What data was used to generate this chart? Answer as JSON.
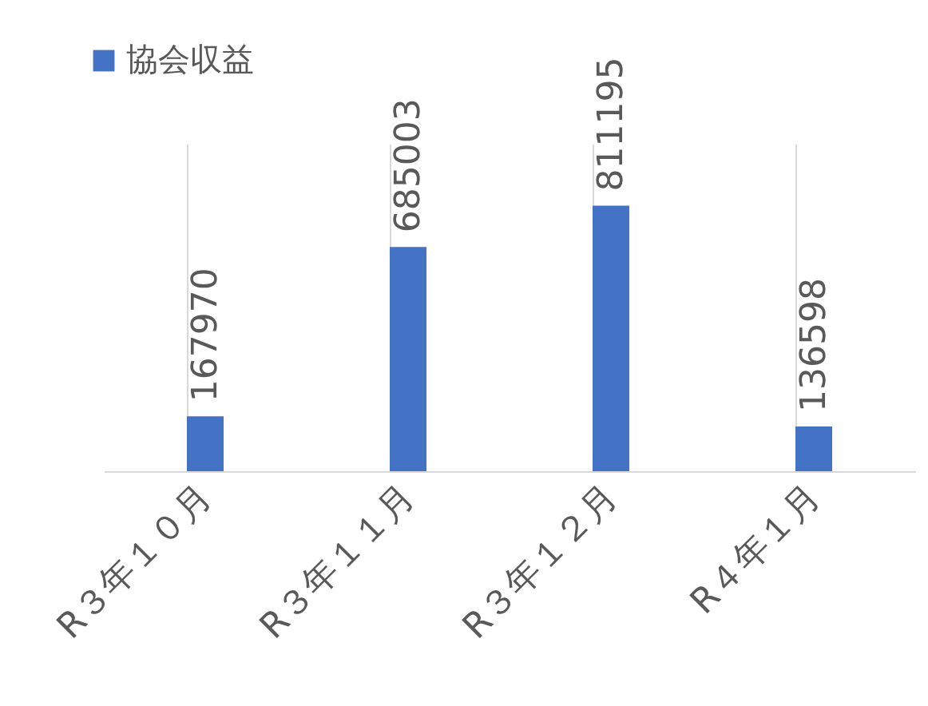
{
  "chart_data": {
    "type": "bar",
    "categories": [
      "R３年１０月",
      "R３年１１月",
      "R３年１２月",
      "R４年１月"
    ],
    "series": [
      {
        "name": "協会収益",
        "color": "#4472c4",
        "values": [
          167970,
          685003,
          811195,
          136598
        ]
      }
    ],
    "ylim": [
      0,
      1000000
    ],
    "data_labels": true,
    "grid": "x",
    "legend": "top left",
    "tick_labels": "x"
  }
}
